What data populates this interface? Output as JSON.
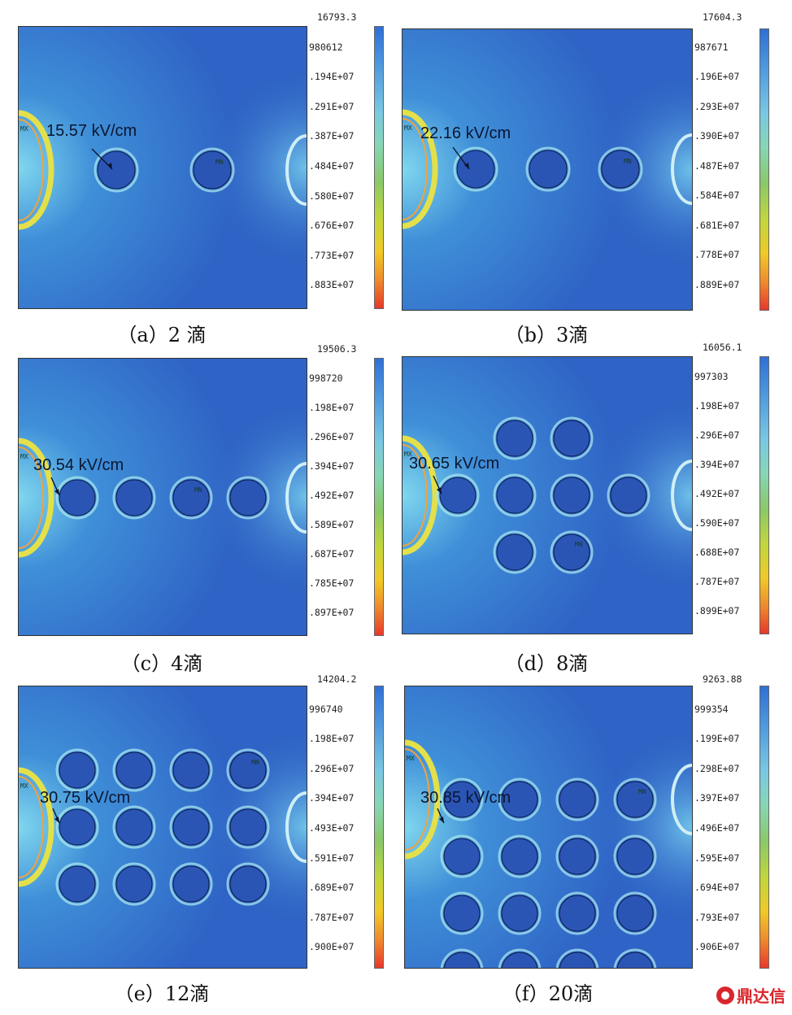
{
  "panels": [
    {
      "id": "a",
      "caption": "（a）2 滴",
      "field": "15.57 kV/cm",
      "legend": [
        "16793.3",
        "980612",
        ".194E+07",
        ".291E+07",
        ".387E+07",
        ".484E+07",
        ".580E+07",
        ".676E+07",
        ".773E+07",
        ".883E+07"
      ],
      "drops": [
        [
          0,
          0
        ],
        [
          1,
          0
        ]
      ],
      "mn": [
        1,
        0
      ]
    },
    {
      "id": "b",
      "caption": "（b）3滴",
      "field": "22.16 kV/cm",
      "legend": [
        "17604.3",
        "987671",
        ".196E+07",
        ".293E+07",
        ".390E+07",
        ".487E+07",
        ".584E+07",
        ".681E+07",
        ".778E+07",
        ".889E+07"
      ],
      "drops": [
        [
          0,
          0
        ],
        [
          1,
          0
        ],
        [
          2,
          0
        ]
      ],
      "mn": [
        2,
        0
      ]
    },
    {
      "id": "c",
      "caption": "（c）4滴",
      "field": "30.54 kV/cm",
      "legend": [
        "19506.3",
        "998720",
        ".198E+07",
        ".296E+07",
        ".394E+07",
        ".492E+07",
        ".589E+07",
        ".687E+07",
        ".785E+07",
        ".897E+07"
      ],
      "drops": [
        [
          0,
          0
        ],
        [
          1,
          0
        ],
        [
          2,
          0
        ],
        [
          3,
          0
        ]
      ],
      "mn": [
        2,
        0
      ]
    },
    {
      "id": "d",
      "caption": "（d）8滴",
      "field": "30.65 kV/cm",
      "legend": [
        "16056.1",
        "997303",
        ".198E+07",
        ".296E+07",
        ".394E+07",
        ".492E+07",
        ".590E+07",
        ".688E+07",
        ".787E+07",
        ".899E+07"
      ],
      "drops": [
        [
          1,
          -1
        ],
        [
          2,
          -1
        ],
        [
          0,
          0
        ],
        [
          1,
          0
        ],
        [
          2,
          0
        ],
        [
          3,
          0
        ],
        [
          1,
          1
        ],
        [
          2,
          1
        ]
      ],
      "mn": [
        2,
        1
      ]
    },
    {
      "id": "e",
      "caption": "（e）12滴",
      "field": "30.75 kV/cm",
      "legend": [
        "14204.2",
        "996740",
        ".198E+07",
        ".296E+07",
        ".394E+07",
        ".493E+07",
        ".591E+07",
        ".689E+07",
        ".787E+07",
        ".900E+07"
      ],
      "drops": [
        [
          0,
          -1
        ],
        [
          1,
          -1
        ],
        [
          2,
          -1
        ],
        [
          3,
          -1
        ],
        [
          0,
          0
        ],
        [
          1,
          0
        ],
        [
          2,
          0
        ],
        [
          3,
          0
        ],
        [
          0,
          1
        ],
        [
          1,
          1
        ],
        [
          2,
          1
        ],
        [
          3,
          1
        ]
      ],
      "mn": [
        3,
        -1
      ]
    },
    {
      "id": "f",
      "caption": "（f）20滴",
      "field": "30.85 kV/cm",
      "legend": [
        "9263.88",
        "999354",
        ".199E+07",
        ".298E+07",
        ".397E+07",
        ".496E+07",
        ".595E+07",
        ".694E+07",
        ".793E+07",
        ".906E+07"
      ],
      "drops": [
        [
          0,
          -2
        ],
        [
          1,
          -2
        ],
        [
          2,
          -2
        ],
        [
          3,
          -2
        ],
        [
          0,
          -1
        ],
        [
          1,
          -1
        ],
        [
          2,
          -1
        ],
        [
          3,
          -1
        ],
        [
          0,
          0
        ],
        [
          1,
          0
        ],
        [
          2,
          0
        ],
        [
          3,
          0
        ],
        [
          0,
          1
        ],
        [
          1,
          1
        ],
        [
          2,
          1
        ],
        [
          3,
          1
        ],
        [
          0,
          2
        ],
        [
          1,
          2
        ],
        [
          2,
          2
        ],
        [
          3,
          2
        ]
      ],
      "mn": [
        3,
        -2
      ]
    }
  ],
  "tags": {
    "max": "MX",
    "min": "MN"
  },
  "watermark": "鼎达信",
  "colors": {
    "background": "#2f64c6",
    "drop": "#2b55b5",
    "edge": "#a8e4ee",
    "electrode": "#e4e04a",
    "legend_top": "#2f6fd6",
    "legend_bottom": "#e8382a"
  }
}
